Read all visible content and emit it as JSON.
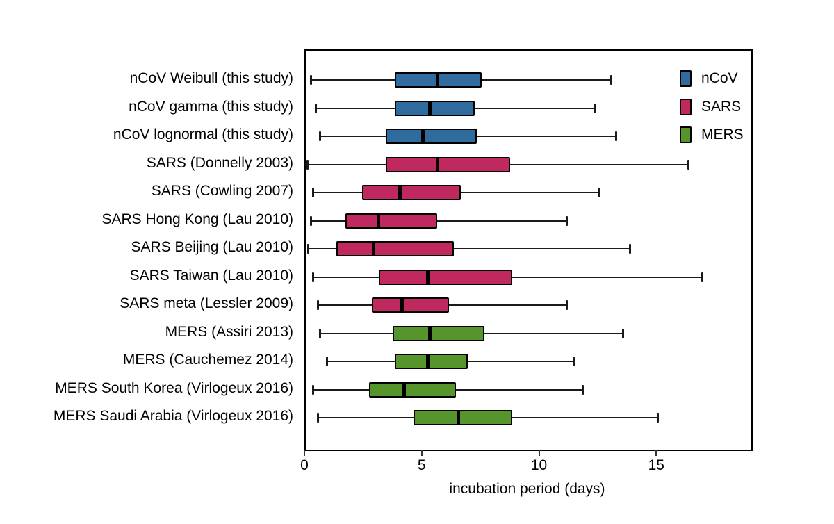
{
  "figure": {
    "background": "#ffffff",
    "axis_color": "#000000"
  },
  "chart_data": {
    "type": "boxplot",
    "orientation": "horizontal",
    "title": "",
    "xlabel": "incubation period (days)",
    "ylabel": "",
    "xlim": [
      0,
      19
    ],
    "xticks": [
      0,
      5,
      10,
      15
    ],
    "grid": false,
    "legend_position": "top-right-inside",
    "legend": [
      {
        "label": "nCoV",
        "color": "#2f6b9d"
      },
      {
        "label": "SARS",
        "color": "#c02960"
      },
      {
        "label": "MERS",
        "color": "#55952c"
      }
    ],
    "rows": [
      {
        "label": "nCoV Weibull (this study)",
        "group": "nCoV",
        "whisker_low": 0.2,
        "q1": 3.8,
        "median": 5.6,
        "q3": 7.5,
        "whisker_high": 13.0
      },
      {
        "label": "nCoV gamma (this study)",
        "group": "nCoV",
        "whisker_low": 0.4,
        "q1": 3.8,
        "median": 5.3,
        "q3": 7.2,
        "whisker_high": 12.3
      },
      {
        "label": "nCoV lognormal (this study)",
        "group": "nCoV",
        "whisker_low": 0.6,
        "q1": 3.4,
        "median": 5.0,
        "q3": 7.3,
        "whisker_high": 13.2
      },
      {
        "label": "SARS (Donnelly 2003)",
        "group": "SARS",
        "whisker_low": 0.05,
        "q1": 3.4,
        "median": 5.6,
        "q3": 8.7,
        "whisker_high": 16.3
      },
      {
        "label": "SARS (Cowling 2007)",
        "group": "SARS",
        "whisker_low": 0.3,
        "q1": 2.4,
        "median": 4.0,
        "q3": 6.6,
        "whisker_high": 12.5
      },
      {
        "label": "SARS Hong Kong (Lau 2010)",
        "group": "SARS",
        "whisker_low": 0.2,
        "q1": 1.7,
        "median": 3.1,
        "q3": 5.6,
        "whisker_high": 11.1
      },
      {
        "label": "SARS Beijing (Lau 2010)",
        "group": "SARS",
        "whisker_low": 0.1,
        "q1": 1.3,
        "median": 2.9,
        "q3": 6.3,
        "whisker_high": 13.8
      },
      {
        "label": "SARS Taiwan (Lau 2010)",
        "group": "SARS",
        "whisker_low": 0.3,
        "q1": 3.1,
        "median": 5.2,
        "q3": 8.8,
        "whisker_high": 16.9
      },
      {
        "label": "SARS meta (Lessler 2009)",
        "group": "SARS",
        "whisker_low": 0.5,
        "q1": 2.8,
        "median": 4.1,
        "q3": 6.1,
        "whisker_high": 11.1
      },
      {
        "label": "MERS (Assiri 2013)",
        "group": "MERS",
        "whisker_low": 0.6,
        "q1": 3.7,
        "median": 5.3,
        "q3": 7.6,
        "whisker_high": 13.5
      },
      {
        "label": "MERS (Cauchemez 2014)",
        "group": "MERS",
        "whisker_low": 0.9,
        "q1": 3.8,
        "median": 5.2,
        "q3": 6.9,
        "whisker_high": 11.4
      },
      {
        "label": "MERS South Korea (Virlogeux 2016)",
        "group": "MERS",
        "whisker_low": 0.3,
        "q1": 2.7,
        "median": 4.2,
        "q3": 6.4,
        "whisker_high": 11.8
      },
      {
        "label": "MERS Saudi Arabia (Virlogeux 2016)",
        "group": "MERS",
        "whisker_low": 0.5,
        "q1": 4.6,
        "median": 6.5,
        "q3": 8.8,
        "whisker_high": 15.0
      }
    ]
  }
}
